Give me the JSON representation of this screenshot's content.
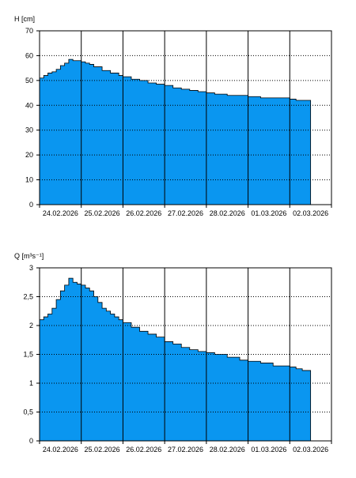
{
  "chart_data": [
    {
      "type": "area",
      "ylabel": "H [cm]",
      "ylim": [
        0,
        70
      ],
      "yticks": [
        0,
        10,
        20,
        30,
        40,
        50,
        60,
        70
      ],
      "xlim": [
        0,
        7
      ],
      "categories": [
        "24.02.2026",
        "25.02.2026",
        "26.02.2026",
        "27.02.2026",
        "28.02.2026",
        "01.03.2026",
        "02.03.2026"
      ],
      "day_lines": [
        1,
        2,
        3,
        4,
        5,
        6
      ],
      "grid": true,
      "fill_color": "#0a96f0",
      "series": [
        {
          "x": [
            0,
            0.1,
            0.2,
            0.3,
            0.4,
            0.5,
            0.6,
            0.7,
            0.8,
            0.9,
            1.0,
            1.1,
            1.2,
            1.3,
            1.5,
            1.7,
            1.9,
            2.0,
            2.2,
            2.4,
            2.6,
            2.8,
            3.0,
            3.2,
            3.4,
            3.6,
            3.8,
            4.0,
            4.2,
            4.5,
            4.8,
            5.0,
            5.3,
            5.6,
            5.9,
            6.0,
            6.15,
            6.3
          ],
          "y": [
            51,
            52,
            53,
            53.5,
            54.5,
            56,
            57,
            58.5,
            58,
            58,
            57.5,
            57,
            56.5,
            55.5,
            54,
            53,
            52,
            51.5,
            50.5,
            50,
            49,
            48.5,
            48,
            47,
            46.5,
            46,
            45.5,
            45,
            44.5,
            44,
            44,
            43.5,
            43,
            43,
            43,
            42.5,
            42,
            42
          ]
        }
      ]
    },
    {
      "type": "area",
      "ylabel": "Q [m³s⁻¹]",
      "ylim": [
        0,
        3
      ],
      "yticks": [
        0,
        0.5,
        1,
        1.5,
        2,
        2.5,
        3
      ],
      "ytick_labels": [
        "0",
        "0,5",
        "1",
        "1,5",
        "2",
        "2,5",
        "3"
      ],
      "xlim": [
        0,
        7
      ],
      "categories": [
        "24.02.2026",
        "25.02.2026",
        "26.02.2026",
        "27.02.2026",
        "28.02.2026",
        "01.03.2026",
        "02.03.2026"
      ],
      "day_lines": [
        1,
        2,
        3,
        4,
        5,
        6
      ],
      "grid": true,
      "fill_color": "#0a96f0",
      "series": [
        {
          "x": [
            0,
            0.1,
            0.2,
            0.3,
            0.4,
            0.5,
            0.6,
            0.7,
            0.8,
            0.9,
            1.0,
            1.1,
            1.2,
            1.3,
            1.4,
            1.5,
            1.6,
            1.7,
            1.8,
            1.9,
            2.0,
            2.2,
            2.4,
            2.6,
            2.8,
            3.0,
            3.2,
            3.4,
            3.6,
            3.8,
            4.0,
            4.2,
            4.5,
            4.8,
            5.0,
            5.3,
            5.6,
            5.9,
            6.0,
            6.15,
            6.3
          ],
          "y": [
            2.1,
            2.15,
            2.2,
            2.3,
            2.45,
            2.6,
            2.7,
            2.82,
            2.75,
            2.72,
            2.7,
            2.65,
            2.6,
            2.5,
            2.4,
            2.3,
            2.25,
            2.2,
            2.15,
            2.1,
            2.05,
            1.97,
            1.9,
            1.85,
            1.8,
            1.72,
            1.68,
            1.62,
            1.58,
            1.55,
            1.53,
            1.5,
            1.45,
            1.4,
            1.38,
            1.35,
            1.3,
            1.3,
            1.28,
            1.25,
            1.22
          ]
        }
      ]
    }
  ]
}
